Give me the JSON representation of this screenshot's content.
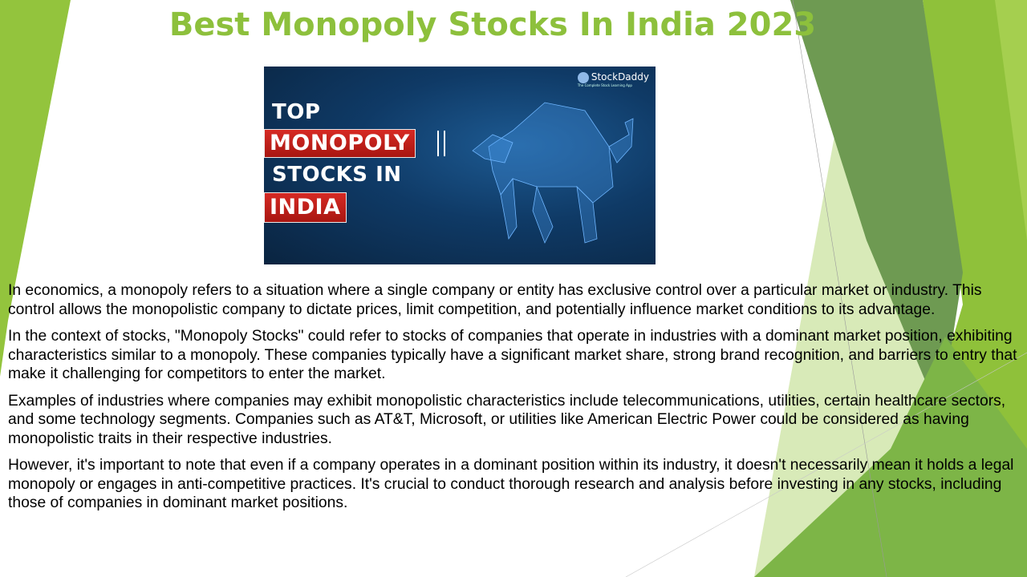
{
  "slide": {
    "title": "Best Monopoly Stocks In India 2023",
    "hero_image": {
      "line1": "TOP",
      "line2": "MONOPOLY",
      "line3": "STOCKS IN",
      "line4": "INDIA",
      "brand": "StockDaddy",
      "brand_tagline": "The Complete Stock Learning App",
      "icon": "bull-icon"
    },
    "paragraphs": [
      "In economics, a monopoly refers to a situation where a single company or entity has exclusive control over a particular market or industry. This control allows the monopolistic company to dictate prices, limit competition, and potentially influence market conditions to its advantage.",
      "In the context of stocks, \"Monopoly Stocks\" could refer to stocks of companies that operate in industries with a dominant market position, exhibiting characteristics similar to a monopoly. These companies typically have a significant market share, strong brand recognition, and barriers to entry that make it challenging for competitors to enter the market.",
      "Examples of industries where companies may exhibit monopolistic characteristics include telecommunications, utilities, certain healthcare sectors, and some technology segments. Companies such as AT&T, Microsoft, or utilities like American Electric Power could be considered as having monopolistic traits in their respective industries.",
      "However, it's important to note that even if a company operates in a dominant position within its industry, it doesn't necessarily mean it holds a legal monopoly or engages in anti-competitive practices. It's crucial to conduct thorough research and analysis before investing in any stocks, including those of companies in dominant market positions."
    ]
  },
  "colors": {
    "title": "#8dc03c",
    "dark_green": "#6e9a52",
    "bright_green": "#8cbf34",
    "pale_green": "#d8eab8",
    "mid_green": "#7db547"
  }
}
